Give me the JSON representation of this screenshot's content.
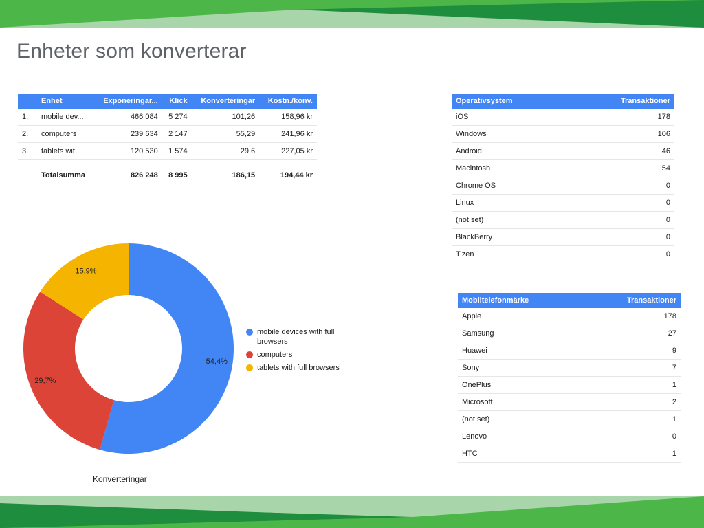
{
  "page": {
    "title": "Enheter som konverterar"
  },
  "device_table": {
    "headers": [
      "Enhet",
      "Exponeringar...",
      "Klick",
      "Konverteringar",
      "Kostn./konv."
    ],
    "rows": [
      {
        "index": "1.",
        "device": "mobile dev...",
        "impressions": "466 084",
        "clicks": "5 274",
        "conversions": "101,26",
        "cost_per_conv": "158,96 kr"
      },
      {
        "index": "2.",
        "device": "computers",
        "impressions": "239 634",
        "clicks": "2 147",
        "conversions": "55,29",
        "cost_per_conv": "241,96 kr"
      },
      {
        "index": "3.",
        "device": "tablets wit...",
        "impressions": "120 530",
        "clicks": "1 574",
        "conversions": "29,6",
        "cost_per_conv": "227,05 kr"
      }
    ],
    "total": {
      "label": "Totalsumma",
      "impressions": "826 248",
      "clicks": "8 995",
      "conversions": "186,15",
      "cost_per_conv": "194,44 kr"
    }
  },
  "os_table": {
    "headers": [
      "Operativsystem",
      "Transaktioner"
    ],
    "rows": [
      {
        "name": "iOS",
        "value": "178"
      },
      {
        "name": "Windows",
        "value": "106"
      },
      {
        "name": "Android",
        "value": "46"
      },
      {
        "name": "Macintosh",
        "value": "54"
      },
      {
        "name": "Chrome OS",
        "value": "0"
      },
      {
        "name": "Linux",
        "value": "0"
      },
      {
        "name": "(not set)",
        "value": "0"
      },
      {
        "name": "BlackBerry",
        "value": "0"
      },
      {
        "name": "Tizen",
        "value": "0"
      }
    ]
  },
  "brand_table": {
    "headers": [
      "Mobiltelefonmärke",
      "Transaktioner"
    ],
    "rows": [
      {
        "name": "Apple",
        "value": "178"
      },
      {
        "name": "Samsung",
        "value": "27"
      },
      {
        "name": "Huawei",
        "value": "9"
      },
      {
        "name": "Sony",
        "value": "7"
      },
      {
        "name": "OnePlus",
        "value": "1"
      },
      {
        "name": "Microsoft",
        "value": "2"
      },
      {
        "name": "(not set)",
        "value": "1"
      },
      {
        "name": "Lenovo",
        "value": "0"
      },
      {
        "name": "HTC",
        "value": "1"
      }
    ]
  },
  "chart_data": {
    "type": "pie",
    "donut": true,
    "title": "",
    "caption": "Konverteringar",
    "legend_position": "right",
    "slices": [
      {
        "label": "mobile devices with full browsers",
        "value": 54.4,
        "display": "54,4%",
        "color": "#4285f4"
      },
      {
        "label": "computers",
        "value": 29.7,
        "display": "29,7%",
        "color": "#db4437"
      },
      {
        "label": "tablets with full browsers",
        "value": 15.9,
        "display": "15,9%",
        "color": "#f4b400"
      }
    ]
  },
  "colors": {
    "header_blue": "#4285f4",
    "deco_green_dark": "#1e8e3e",
    "deco_green_mid": "#4cb748",
    "deco_green_light": "#a8d5a9"
  }
}
